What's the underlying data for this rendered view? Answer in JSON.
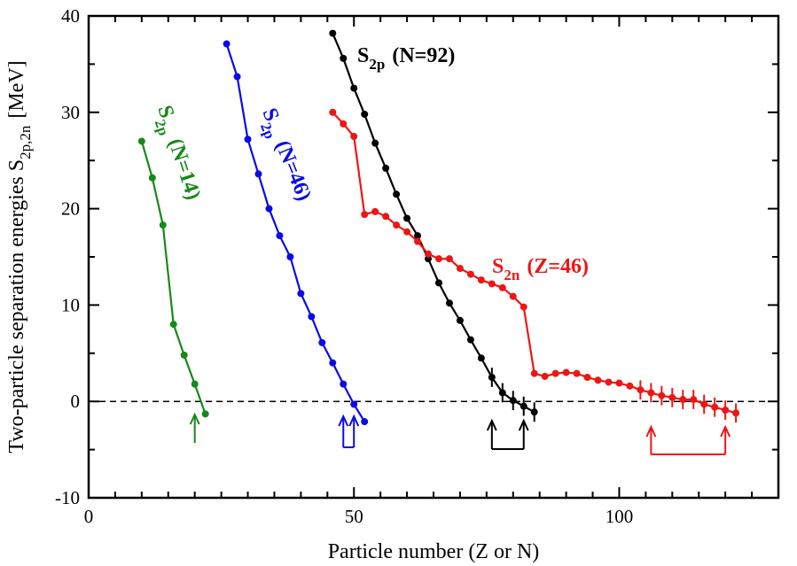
{
  "chart_data": {
    "type": "line",
    "x_label": "Particle  number  (Z or N)",
    "y_label": [
      "Two-particle separation energies S",
      "2p,2n",
      "[MeV]"
    ],
    "xlim": [
      0,
      130
    ],
    "ylim": [
      -10,
      40
    ],
    "xticks": [
      0,
      50,
      100
    ],
    "yticks": [
      -10,
      0,
      10,
      20,
      30,
      40
    ],
    "xminorticks": [
      5,
      10,
      15,
      20,
      25,
      30,
      35,
      40,
      45,
      55,
      60,
      65,
      70,
      75,
      80,
      85,
      90,
      95,
      105,
      110,
      115,
      120,
      125
    ],
    "yminorticks": [
      -5,
      5,
      15,
      25,
      35
    ],
    "hline": 0,
    "series": [
      {
        "label": [
          "S",
          "2p",
          "(N=14)"
        ],
        "color": "#17891a",
        "x": [
          10,
          12,
          14,
          16,
          18,
          20,
          22
        ],
        "values": [
          27,
          23.2,
          18.3,
          8,
          4.8,
          1.8,
          -1.3
        ],
        "drip": [
          20
        ]
      },
      {
        "label": [
          "S",
          "2p",
          "(N=46)"
        ],
        "color": "#0a0ae6",
        "x": [
          26,
          28,
          30,
          32,
          34,
          36,
          38,
          40,
          42,
          44,
          46,
          48,
          50,
          52
        ],
        "values": [
          37.1,
          33.7,
          27.2,
          23.6,
          20,
          17.2,
          15,
          11.2,
          8.8,
          6.1,
          4,
          1.8,
          -0.3,
          -2.1
        ],
        "drip": [
          48,
          50
        ]
      },
      {
        "label": [
          "S",
          "2p",
          "(N=92)"
        ],
        "color": "#000000",
        "x": [
          46,
          48,
          50,
          52,
          54,
          56,
          58,
          60,
          62,
          64,
          66,
          68,
          70,
          72,
          74,
          76,
          78,
          80,
          82,
          84
        ],
        "values": [
          38.2,
          35.6,
          32.5,
          29.8,
          26.8,
          24.2,
          21.5,
          19,
          17.2,
          14.8,
          12.3,
          10.2,
          8.4,
          6.4,
          4.5,
          2.5,
          0.9,
          0.1,
          -0.5,
          -1.1
        ],
        "errors": [
          null,
          null,
          null,
          null,
          null,
          null,
          null,
          null,
          null,
          null,
          null,
          null,
          null,
          null,
          null,
          1,
          1,
          1,
          1,
          1
        ],
        "drip": [
          76,
          82
        ]
      },
      {
        "label": [
          "S",
          "2n",
          "(Z=46)"
        ],
        "color": "#ee1515",
        "x": [
          46,
          48,
          50,
          52,
          54,
          56,
          58,
          60,
          62,
          64,
          66,
          68,
          70,
          72,
          74,
          76,
          78,
          80,
          82,
          84,
          86,
          88,
          90,
          92,
          94,
          96,
          98,
          100,
          102,
          104,
          106,
          108,
          110,
          112,
          114,
          116,
          118,
          120,
          122
        ],
        "values": [
          30,
          28.8,
          27.5,
          19.4,
          19.7,
          19.2,
          18.3,
          17.6,
          16.6,
          15.3,
          14.8,
          14.8,
          13.8,
          13.2,
          12.6,
          12.2,
          11.8,
          10.9,
          9.8,
          2.9,
          2.6,
          2.9,
          3,
          2.9,
          2.5,
          2.2,
          2,
          1.9,
          1.6,
          1.2,
          0.9,
          0.6,
          0.4,
          0.2,
          0.2,
          -0.3,
          -0.6,
          -0.9,
          -1.2
        ],
        "errors": [
          null,
          null,
          null,
          null,
          null,
          null,
          null,
          null,
          null,
          null,
          null,
          null,
          null,
          null,
          null,
          null,
          null,
          null,
          null,
          null,
          null,
          null,
          null,
          null,
          null,
          null,
          null,
          null,
          null,
          1,
          1,
          1,
          1,
          1,
          1,
          1,
          1,
          1,
          1
        ],
        "drip": [
          106,
          120
        ]
      }
    ]
  }
}
